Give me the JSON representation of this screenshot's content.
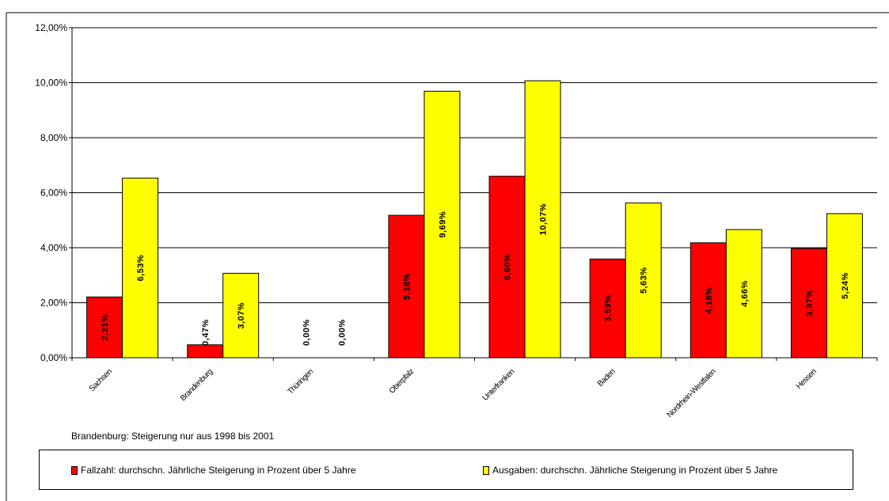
{
  "chart_data": {
    "type": "bar",
    "categories": [
      "Sachsen",
      "Brandenburg",
      "Thüringen",
      "Oberpfalz",
      "Unterfranken",
      "Baden",
      "Nordrhein-Westfalen",
      "Hessen"
    ],
    "series": [
      {
        "name": "Fallzahl: durchschn. Jährliche Steigerung in Prozent über 5 Jahre",
        "values": [
          2.21,
          0.47,
          0.0,
          5.18,
          6.6,
          3.59,
          4.18,
          3.97
        ],
        "labels": [
          "2,21%",
          "0,47%",
          "0,00%",
          "5,18%",
          "6,60%",
          "3,59%",
          "4,18%",
          "3,97%"
        ],
        "color": "#FF0000"
      },
      {
        "name": "Ausgaben: durchschn. Jährliche Steigerung in Prozent über 5 Jahre",
        "values": [
          6.53,
          3.07,
          0.0,
          9.69,
          10.07,
          5.63,
          4.66,
          5.24
        ],
        "labels": [
          "6,53%",
          "3,07%",
          "0,00%",
          "9,69%",
          "10,07%",
          "5,63%",
          "4,66%",
          "5,24%"
        ],
        "color": "#FFFF00"
      }
    ],
    "ylim": [
      0,
      12
    ],
    "yticks": [
      0,
      2,
      4,
      6,
      8,
      10,
      12
    ],
    "ytick_labels": [
      "0,00%",
      "2,00%",
      "4,00%",
      "6,00%",
      "8,00%",
      "10,00%",
      "12,00%"
    ],
    "grid": true,
    "legend_position": "bottom",
    "note": "Brandenburg: Steigerung nur aus 1998 bis 2001"
  }
}
